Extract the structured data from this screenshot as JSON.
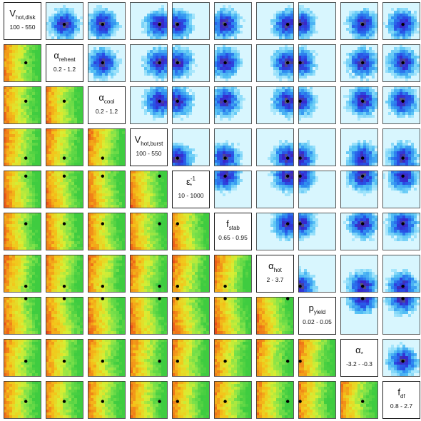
{
  "chart_data": {
    "type": "heatmap",
    "layout": "triangle-matrix",
    "parameters": [
      {
        "symbol": "V",
        "sub": "hot,disk",
        "sup": "",
        "range": "100 - 550"
      },
      {
        "symbol": "α",
        "sub": "reheat",
        "sup": "",
        "range": "0.2 - 1.2"
      },
      {
        "symbol": "α",
        "sub": "cool",
        "sup": "",
        "range": "0.2 - 1.2"
      },
      {
        "symbol": "V",
        "sub": "hot,burst",
        "sup": "",
        "range": "100 - 550"
      },
      {
        "symbol": "ε",
        "sub": "*",
        "sup": "-1",
        "range": "10 - 1000"
      },
      {
        "symbol": "f",
        "sub": "stab",
        "sup": "",
        "range": "0.65 - 0.95"
      },
      {
        "symbol": "α",
        "sub": "hot",
        "sup": "",
        "range": "2 - 3.7"
      },
      {
        "symbol": "p",
        "sub": "yield",
        "sup": "",
        "range": "0.02 - 0.05"
      },
      {
        "symbol": "α",
        "sub": "*",
        "sup": "",
        "range": "-3.2 - -0.3"
      },
      {
        "symbol": "f",
        "sub": "df",
        "sup": "",
        "range": "0.8 - 2.7"
      }
    ],
    "best_fit": [
      0.6,
      0.5,
      0.4,
      0.8,
      0.15,
      0.3,
      0.85,
      0.05,
      0.6,
      0.55
    ],
    "upper_colorscale": [
      "#5a5f70",
      "#3a23c8",
      "#2850e6",
      "#2e8cf0",
      "#56c2f4",
      "#9be2fb",
      "#d8f6fe"
    ],
    "lower_colorscale": [
      "#e3261a",
      "#f07818",
      "#f4c41a",
      "#d8ee34",
      "#7fe24a",
      "#3fcc40"
    ]
  }
}
